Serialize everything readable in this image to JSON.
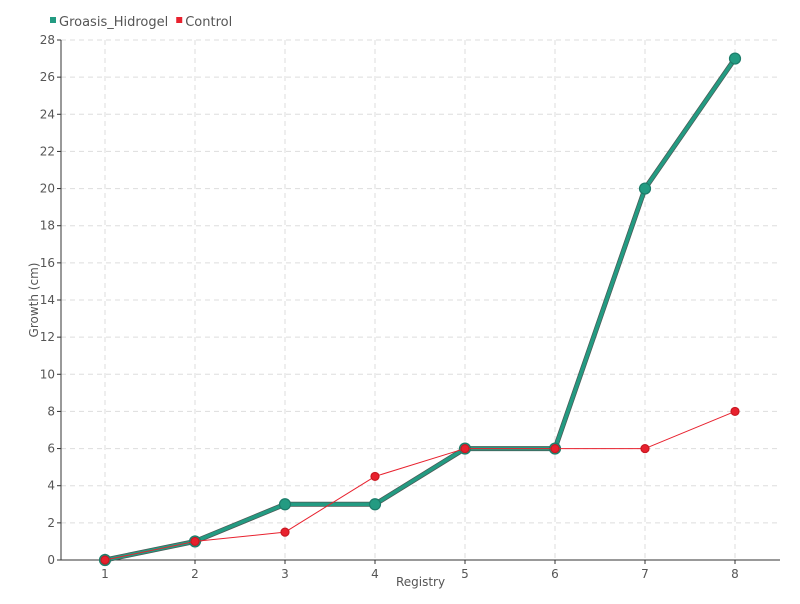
{
  "chart_data": {
    "type": "line",
    "title": "",
    "xlabel": "Registry",
    "ylabel": "Growth (cm)",
    "categories": [
      "1",
      "2",
      "3",
      "4",
      "5",
      "6",
      "7",
      "8"
    ],
    "series": [
      {
        "name": "Groasis_Hidrogel",
        "color": "#239b82",
        "values": [
          0,
          1,
          3,
          3,
          6,
          6,
          20,
          27
        ]
      },
      {
        "name": "Control",
        "color": "#e8212e",
        "values": [
          0,
          1,
          1.5,
          4.5,
          6,
          6,
          6,
          8
        ]
      }
    ],
    "ylim": [
      0,
      28
    ],
    "yticks": [
      0,
      2,
      4,
      6,
      8,
      10,
      12,
      14,
      16,
      18,
      20,
      22,
      24,
      26,
      28
    ],
    "grid": true,
    "legend_position": "top-left"
  }
}
